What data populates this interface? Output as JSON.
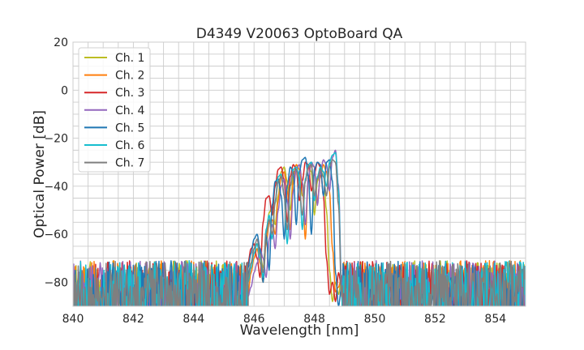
{
  "chart_data": {
    "type": "line",
    "title": "D4349 V20063 OptoBoard QA",
    "xlabel": "Wavelength [nm]",
    "ylabel": "Optical Power [dB]",
    "xlim": [
      840,
      855
    ],
    "ylim": [
      -90,
      20
    ],
    "xticks": [
      840,
      842,
      844,
      846,
      848,
      850,
      852,
      854
    ],
    "xtick_labels": [
      "840",
      "842",
      "844",
      "846",
      "848",
      "850",
      "852",
      "854"
    ],
    "yticks": [
      20,
      0,
      -20,
      -40,
      -60,
      -80
    ],
    "ytick_labels": [
      "20",
      "0",
      "−20",
      "−40",
      "−60",
      "−80"
    ],
    "grid": true,
    "grid_x_step": 0.5,
    "grid_y_step": 5,
    "legend_position": "top-left",
    "noise_floor": {
      "min": -90,
      "max": -71,
      "step": 0.025
    },
    "series": [
      {
        "name": "Ch. 1",
        "color": "#bcbd22",
        "seed": 11,
        "signal_start": 845.8,
        "signal_step": 0.1,
        "signal": [
          -78,
          -72,
          -66,
          -64,
          -68,
          -74,
          -62,
          -51,
          -49,
          -56,
          -44,
          -34,
          -32,
          -38,
          -50,
          -36,
          -31,
          -33,
          -44,
          -38,
          -31,
          -34,
          -52,
          -38,
          -32,
          -34,
          -50,
          -75,
          -88,
          -80,
          -85,
          -78
        ]
      },
      {
        "name": "Ch. 2",
        "color": "#ff7f0e",
        "seed": 23,
        "signal_start": 845.8,
        "signal_step": 0.1,
        "signal": [
          -85,
          -76,
          -70,
          -66,
          -72,
          -80,
          -64,
          -55,
          -54,
          -60,
          -46,
          -36,
          -34,
          -42,
          -58,
          -38,
          -31,
          -33,
          -40,
          -62,
          -36,
          -31,
          -32,
          -46,
          -36,
          -31,
          -34,
          -42,
          -66,
          -84,
          -82,
          -78
        ]
      },
      {
        "name": "Ch. 3",
        "color": "#d62728",
        "seed": 37,
        "signal_start": 845.8,
        "signal_step": 0.1,
        "signal": [
          -72,
          -66,
          -64,
          -70,
          -78,
          -55,
          -45,
          -44,
          -52,
          -40,
          -33,
          -32,
          -38,
          -55,
          -36,
          -31,
          -33,
          -46,
          -38,
          -30,
          -31,
          -42,
          -35,
          -30,
          -32,
          -44,
          -70,
          -85,
          -80,
          -88,
          -76,
          -82
        ]
      },
      {
        "name": "Ch. 4",
        "color": "#9467bd",
        "seed": 41,
        "signal_start": 845.8,
        "signal_step": 0.1,
        "signal": [
          -86,
          -82,
          -76,
          -72,
          -66,
          -70,
          -78,
          -62,
          -56,
          -66,
          -50,
          -40,
          -37,
          -46,
          -62,
          -42,
          -33,
          -31,
          -38,
          -56,
          -36,
          -30,
          -32,
          -48,
          -34,
          -29,
          -31,
          -42,
          -28,
          -25,
          -40,
          -80
        ]
      },
      {
        "name": "Ch. 5",
        "color": "#1f77b4",
        "seed": 53,
        "signal_start": 845.8,
        "signal_step": 0.1,
        "signal": [
          -74,
          -68,
          -62,
          -60,
          -66,
          -80,
          -60,
          -75,
          -48,
          -38,
          -37,
          -44,
          -62,
          -40,
          -32,
          -34,
          -56,
          -34,
          -29,
          -28,
          -36,
          -60,
          -33,
          -30,
          -31,
          -44,
          -30,
          -29,
          -38,
          -76,
          -90,
          -82
        ]
      },
      {
        "name": "Ch. 6",
        "color": "#17becf",
        "seed": 67,
        "signal_start": 845.8,
        "signal_step": 0.1,
        "signal": [
          -80,
          -74,
          -68,
          -64,
          -70,
          -78,
          -58,
          -52,
          -62,
          -46,
          -36,
          -35,
          -44,
          -64,
          -40,
          -33,
          -32,
          -36,
          -58,
          -37,
          -31,
          -30,
          -46,
          -36,
          -32,
          -34,
          -40,
          -30,
          -27,
          -26,
          -42,
          -84
        ]
      },
      {
        "name": "Ch. 7",
        "color": "#7f7f7f",
        "seed": 79,
        "signal_start": 845.8,
        "signal_step": 0.1,
        "signal": [
          -78,
          -72,
          -66,
          -62,
          -68,
          -76,
          -60,
          -54,
          -60,
          -47,
          -38,
          -36,
          -44,
          -58,
          -40,
          -34,
          -33,
          -40,
          -52,
          -38,
          -32,
          -31,
          -44,
          -37,
          -33,
          -36,
          -44,
          -32,
          -29,
          -30,
          -48,
          -86
        ]
      }
    ]
  }
}
